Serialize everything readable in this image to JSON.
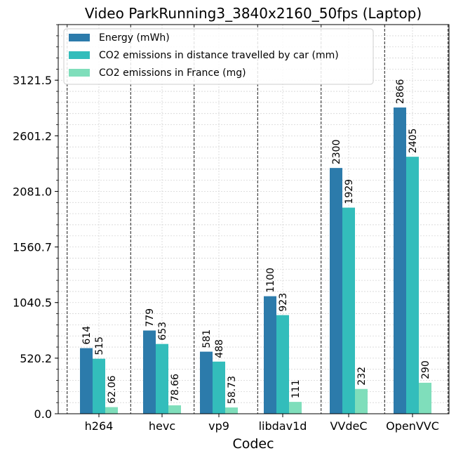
{
  "chart_data": {
    "type": "bar",
    "title": "Video ParkRunning3_3840x2160_50fps (Laptop)",
    "xlabel": "Codec",
    "ylabel": "",
    "categories": [
      "h264",
      "hevc",
      "vp9",
      "libdav1d",
      "VVdeC",
      "OpenVVC"
    ],
    "series": [
      {
        "name": "Energy (mWh)",
        "color": "#2c7bab",
        "values": [
          614,
          779,
          581,
          1100,
          2300,
          2866
        ],
        "labels": [
          "614",
          "779",
          "581",
          "1100",
          "2300",
          "2866"
        ]
      },
      {
        "name": "CO2 emissions in distance travelled by car (mm)",
        "color": "#33bdbb",
        "values": [
          515,
          653,
          488,
          923,
          1929,
          2405
        ],
        "labels": [
          "515",
          "653",
          "488",
          "923",
          "1929",
          "2405"
        ]
      },
      {
        "name": "CO2 emissions in France (mg)",
        "color": "#7fdebb",
        "values": [
          62.06,
          78.66,
          58.73,
          111,
          232,
          290
        ],
        "labels": [
          "62.06",
          "78.66",
          "58.73",
          "111",
          "232",
          "290"
        ]
      }
    ],
    "yticks": [
      0.0,
      520.2,
      1040.5,
      1560.7,
      2081.0,
      2601.2,
      3121.5
    ],
    "ytick_labels": [
      "0.0",
      "520.2",
      "1040.5",
      "1560.7",
      "2081.0",
      "2601.2",
      "3121.5"
    ],
    "ylim": [
      0,
      3642
    ],
    "grid": true,
    "legend_position": "top-left"
  }
}
